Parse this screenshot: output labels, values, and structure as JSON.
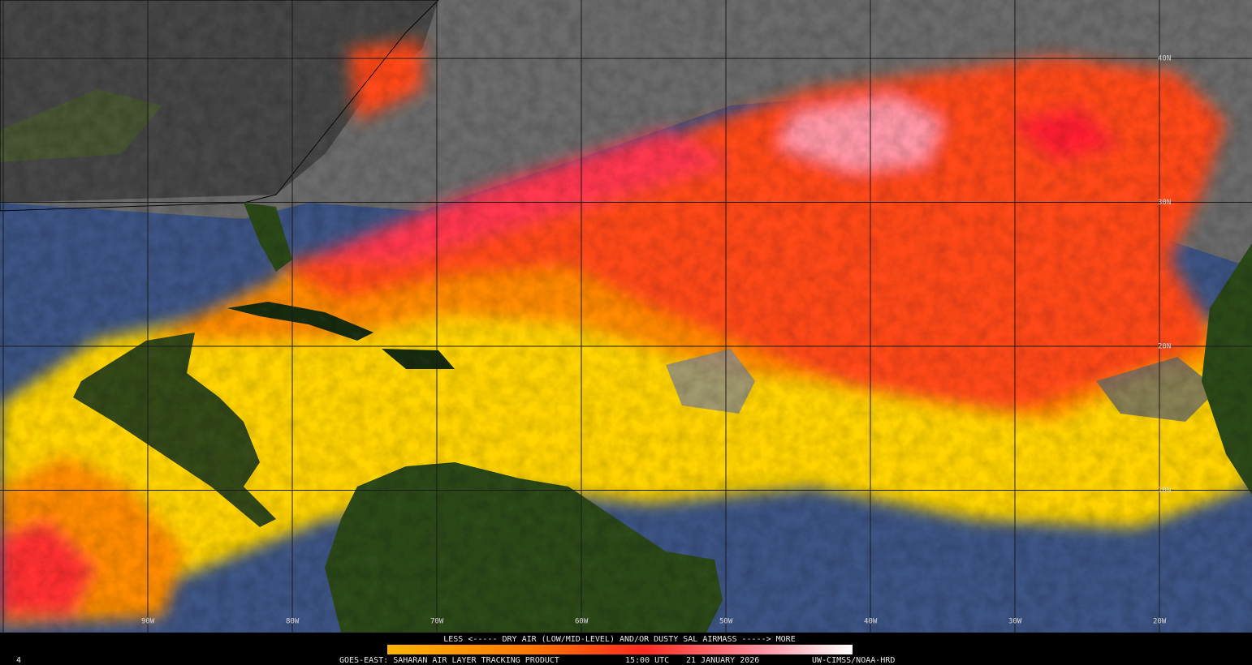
{
  "grid": {
    "lat_labels": [
      "40N",
      "30N",
      "20N",
      "10N"
    ],
    "lon_labels": [
      "90W",
      "80W",
      "70W",
      "60W",
      "50W",
      "40W",
      "30W",
      "20W"
    ]
  },
  "colorbar": {
    "caption": "LESS <----- DRY AIR (LOW/MID-LEVEL) AND/OR DUSTY SAL AIRMASS -----> MORE"
  },
  "footer": {
    "frame": "4",
    "product": "GOES-EAST: SAHARAN AIR LAYER TRACKING PRODUCT",
    "time": "15:00 UTC",
    "date": "21 JANUARY 2026",
    "credit": "UW-CIMSS/NOAA-HRD"
  }
}
